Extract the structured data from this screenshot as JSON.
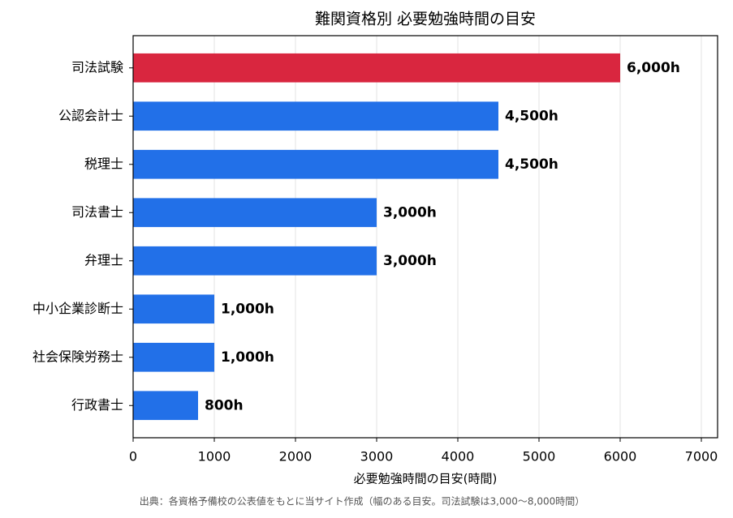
{
  "chart_data": {
    "type": "barh",
    "title": "難関資格別 必要勉強時間の目安",
    "x_label": "必要勉強時間の目安(時間)",
    "footnote": "出典：各資格予備校の公表値をもとに当サイト作成（幅のある目安。司法試験は3,000〜8,000時間）",
    "categories": [
      "司法試験",
      "公認会計士",
      "税理士",
      "司法書士",
      "弁理士",
      "中小企業診断士",
      "社会保険労務士",
      "行政書士"
    ],
    "values": [
      6000,
      4500,
      4500,
      3000,
      3000,
      1000,
      1000,
      800
    ],
    "value_labels": [
      "6,000h",
      "4,500h",
      "4,500h",
      "3,000h",
      "3,000h",
      "1,000h",
      "1,000h",
      "800h"
    ],
    "colors": [
      "#d9263f",
      "#2270e8",
      "#2270e8",
      "#2270e8",
      "#2270e8",
      "#2270e8",
      "#2270e8",
      "#2270e8"
    ],
    "xlim": [
      0,
      7200
    ],
    "xticks": [
      0,
      1000,
      2000,
      3000,
      4000,
      5000,
      6000,
      7000
    ],
    "grid": true
  }
}
